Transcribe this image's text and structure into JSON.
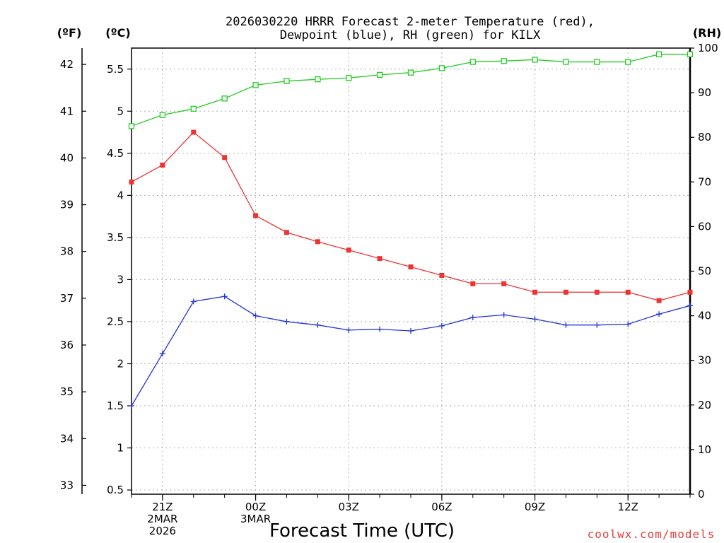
{
  "chart_data": {
    "type": "line",
    "title_line1": "2026030220 HRRR Forecast 2-meter Temperature (red),",
    "title_line2": "Dewpoint (blue), RH (green) for KILX",
    "units": {
      "fahrenheit": "(ºF)",
      "celsius": "(ºC)",
      "rh": "(RH)"
    },
    "xlabel": "Forecast Time (UTC)",
    "watermark": "coolwx.com/models",
    "x_hours": [
      20,
      21,
      22,
      23,
      24,
      25,
      26,
      27,
      28,
      29,
      30,
      31,
      32,
      33,
      34,
      35,
      36,
      37,
      38
    ],
    "xlim": [
      20,
      38
    ],
    "x_ticks": [
      {
        "hour": 21,
        "lines": [
          "21Z",
          "2MAR",
          "2026"
        ]
      },
      {
        "hour": 24,
        "lines": [
          "00Z",
          "3MAR"
        ]
      },
      {
        "hour": 27,
        "lines": [
          "03Z"
        ]
      },
      {
        "hour": 30,
        "lines": [
          "06Z"
        ]
      },
      {
        "hour": 33,
        "lines": [
          "09Z"
        ]
      },
      {
        "hour": 36,
        "lines": [
          "12Z"
        ]
      }
    ],
    "celsius_axis": {
      "ylim": [
        0.45,
        5.75
      ],
      "ticks": [
        "0.5",
        "1",
        "1.5",
        "2",
        "2.5",
        "3",
        "3.5",
        "4",
        "4.5",
        "5",
        "5.5"
      ]
    },
    "fahrenheit_axis": {
      "ticks": [
        "33",
        "34",
        "35",
        "36",
        "37",
        "38",
        "39",
        "40",
        "41",
        "42"
      ]
    },
    "rh_axis": {
      "ylim": [
        0,
        100
      ],
      "ticks": [
        "0",
        "10",
        "20",
        "30",
        "40",
        "50",
        "60",
        "70",
        "80",
        "90",
        "100"
      ]
    },
    "series": [
      {
        "name": "Temperature",
        "axis": "celsius",
        "color": "#ee3333",
        "marker": "filled-square",
        "values": [
          4.16,
          4.36,
          4.75,
          4.45,
          3.76,
          3.56,
          3.45,
          3.35,
          3.25,
          3.15,
          3.05,
          2.95,
          2.95,
          2.85,
          2.85,
          2.85,
          2.85,
          2.75,
          2.85
        ]
      },
      {
        "name": "Dewpoint",
        "axis": "celsius",
        "color": "#2233dd",
        "marker": "plus",
        "values": [
          1.5,
          2.12,
          2.74,
          2.8,
          2.57,
          2.5,
          2.46,
          2.4,
          2.41,
          2.39,
          2.45,
          2.55,
          2.58,
          2.53,
          2.46,
          2.46,
          2.47,
          2.59,
          2.69
        ]
      },
      {
        "name": "RH",
        "axis": "rh",
        "color": "#22cc22",
        "marker": "open-square",
        "values": [
          82.5,
          85,
          86.4,
          88.7,
          91.7,
          92.6,
          93,
          93.3,
          94,
          94.5,
          95.5,
          96.9,
          97.1,
          97.4,
          96.9,
          96.9,
          96.9,
          98.6,
          98.6
        ]
      }
    ]
  }
}
